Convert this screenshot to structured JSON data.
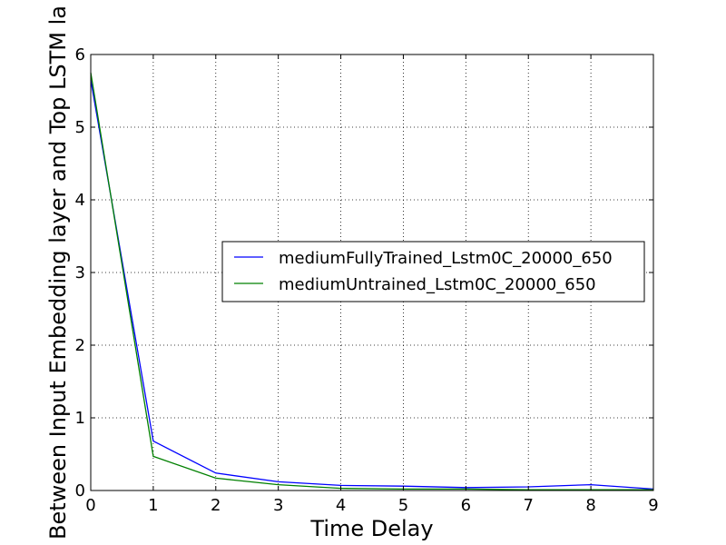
{
  "chart_data": {
    "type": "line",
    "title": "",
    "xlabel": "Time Delay",
    "ylabel": "Between Input Embedding layer and Top LSTM la",
    "xlim": [
      0,
      9
    ],
    "ylim": [
      0,
      6
    ],
    "xticks": [
      0,
      1,
      2,
      3,
      4,
      5,
      6,
      7,
      8,
      9
    ],
    "yticks": [
      0,
      1,
      2,
      3,
      4,
      5,
      6
    ],
    "grid": true,
    "legend_position": "center-right",
    "x": [
      0,
      1,
      2,
      3,
      4,
      5,
      6,
      7,
      8,
      9
    ],
    "series": [
      {
        "name": "mediumFullyTrained_Lstm0C_20000_650",
        "color": "#0000ff",
        "values": [
          5.65,
          0.68,
          0.24,
          0.12,
          0.07,
          0.06,
          0.04,
          0.05,
          0.08,
          0.02
        ]
      },
      {
        "name": "mediumUntrained_Lstm0C_20000_650",
        "color": "#008000",
        "values": [
          5.75,
          0.47,
          0.17,
          0.08,
          0.03,
          0.02,
          0.02,
          0.01,
          0.01,
          0.01
        ]
      }
    ]
  }
}
